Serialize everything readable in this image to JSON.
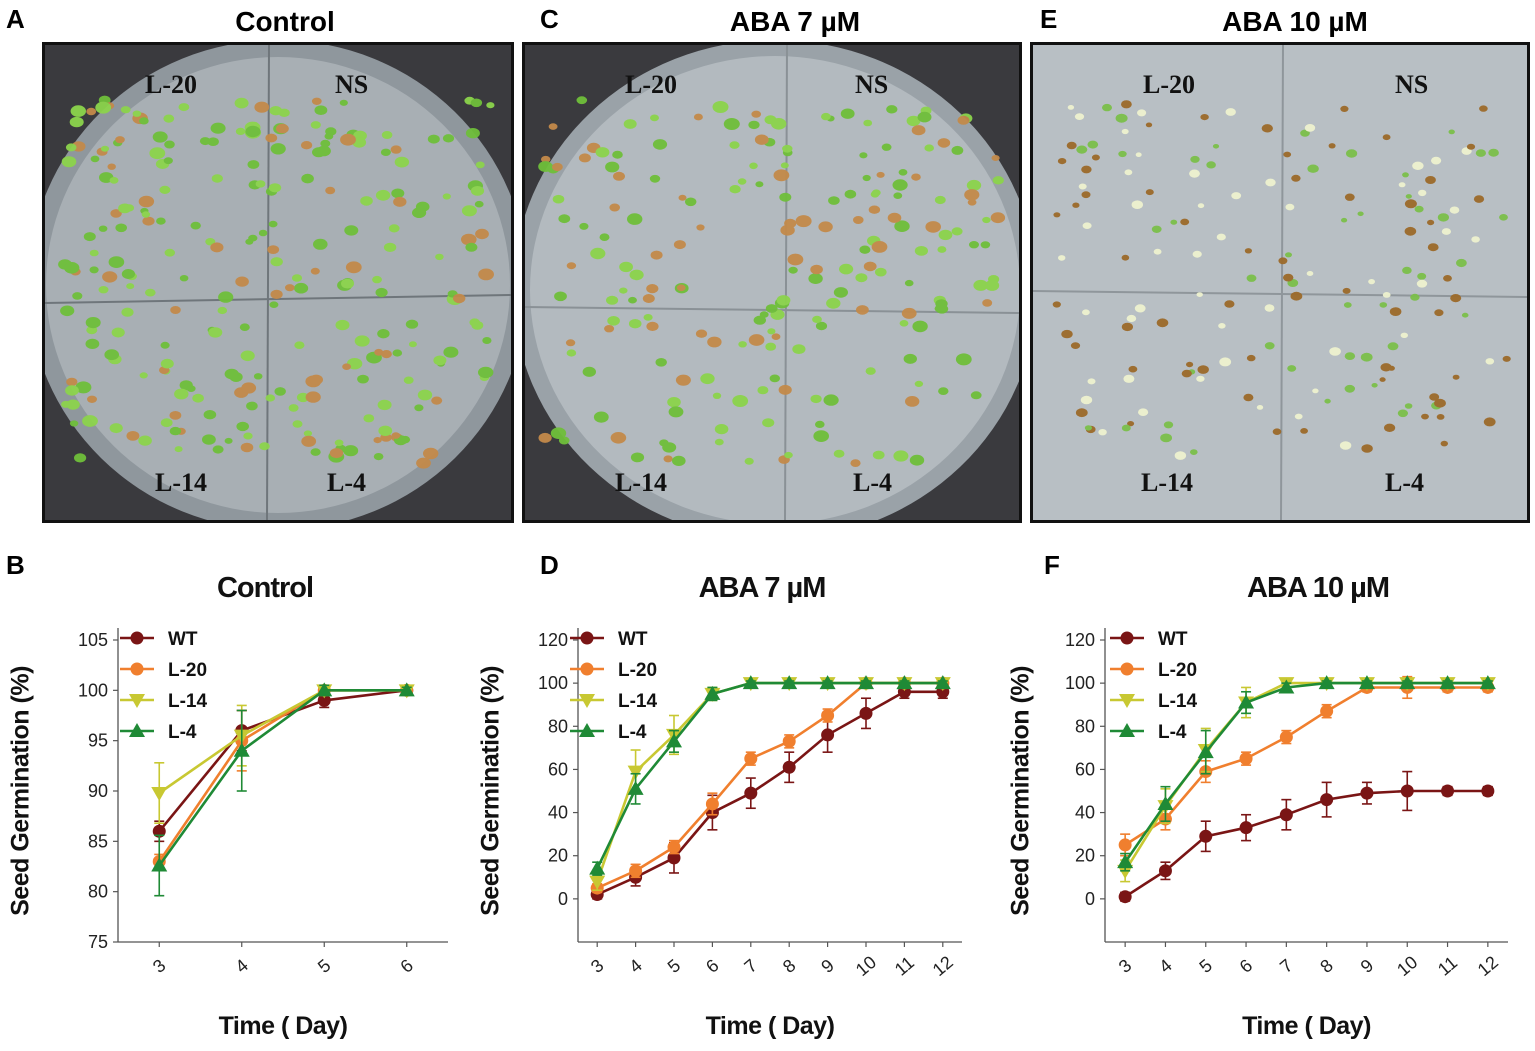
{
  "panels": {
    "A": {
      "letter": "A",
      "title": "Control"
    },
    "C": {
      "letter": "C",
      "title": "ABA  7 µM"
    },
    "E": {
      "letter": "E",
      "title": "ABA 10 µM"
    },
    "B": {
      "letter": "B"
    },
    "D": {
      "letter": "D"
    },
    "F": {
      "letter": "F"
    }
  },
  "plate_labels": {
    "top_left": "L-20",
    "top_right": "NS",
    "bottom_left": "L-14",
    "bottom_right": "L-4"
  },
  "series_colors": {
    "WT": "#7a1515",
    "L-20": "#f07f2e",
    "L-14": "#c8c832",
    "L-4": "#1f8a36"
  },
  "chart_data": [
    {
      "type": "line",
      "title": "Control",
      "xlabel": "Time ( Day)",
      "ylabel": "Seed Germination (%)",
      "x": [
        3,
        4,
        5,
        6
      ],
      "ylim": [
        75,
        105
      ],
      "yticks": [
        75,
        80,
        85,
        90,
        95,
        100,
        105
      ],
      "legend": "top-left",
      "series": [
        {
          "name": "WT",
          "marker": "circle",
          "values": [
            86,
            96,
            99,
            100
          ],
          "err": [
            1,
            2,
            0.7,
            0.3
          ]
        },
        {
          "name": "L-20",
          "marker": "circle",
          "values": [
            83,
            95,
            100,
            100
          ],
          "err": [
            0.7,
            3,
            0.5,
            0.3
          ]
        },
        {
          "name": "L-14",
          "marker": "triangle-down",
          "values": [
            89.8,
            95.5,
            100,
            100
          ],
          "err": [
            3,
            3,
            0.5,
            0.5
          ]
        },
        {
          "name": "L-4",
          "marker": "triangle-up",
          "values": [
            82.6,
            94,
            100,
            100
          ],
          "err": [
            3,
            4,
            0.5,
            0.3
          ]
        }
      ]
    },
    {
      "type": "line",
      "title": "ABA 7 µM",
      "xlabel": "Time ( Day)",
      "ylabel": "Seed Germination (%)",
      "x": [
        3,
        4,
        5,
        6,
        7,
        8,
        9,
        10,
        11,
        12
      ],
      "ylim": [
        -20,
        120
      ],
      "yticks": [
        0,
        20,
        40,
        60,
        80,
        100,
        120
      ],
      "legend": "top-left",
      "series": [
        {
          "name": "WT",
          "marker": "circle",
          "values": [
            2,
            10,
            19,
            40,
            49,
            61,
            76,
            86,
            96,
            96
          ],
          "err": [
            2,
            4,
            7,
            8,
            7,
            7,
            8,
            7,
            3,
            3
          ]
        },
        {
          "name": "L-20",
          "marker": "circle",
          "values": [
            5,
            13,
            24,
            44,
            65,
            73,
            85,
            100,
            100,
            100
          ],
          "err": [
            2,
            3,
            3,
            5,
            3,
            3,
            3,
            1,
            1,
            1
          ]
        },
        {
          "name": "L-14",
          "marker": "triangle-down",
          "values": [
            8,
            59,
            76,
            95,
            100,
            100,
            100,
            100,
            100,
            100
          ],
          "err": [
            4,
            10,
            9,
            3,
            1,
            1,
            1,
            1,
            1,
            1
          ]
        },
        {
          "name": "L-4",
          "marker": "triangle-up",
          "values": [
            14,
            51,
            73,
            95,
            100,
            100,
            100,
            100,
            100,
            100
          ],
          "err": [
            3,
            7,
            5,
            3,
            1,
            1,
            1,
            1,
            1,
            1
          ]
        }
      ]
    },
    {
      "type": "line",
      "title": "ABA 10 µM",
      "xlabel": "Time ( Day)",
      "ylabel": "Seed Germination (%)",
      "x": [
        3,
        4,
        5,
        6,
        7,
        8,
        9,
        10,
        11,
        12
      ],
      "ylim": [
        -20,
        120
      ],
      "yticks": [
        0,
        20,
        40,
        60,
        80,
        100,
        120
      ],
      "legend": "top-left",
      "series": [
        {
          "name": "WT",
          "marker": "circle",
          "values": [
            1,
            13,
            29,
            33,
            39,
            46,
            49,
            50,
            50,
            50
          ],
          "err": [
            2,
            4,
            7,
            6,
            7,
            8,
            5,
            9,
            2,
            2
          ]
        },
        {
          "name": "L-20",
          "marker": "circle",
          "values": [
            25,
            37,
            59,
            65,
            75,
            87,
            98,
            98,
            98,
            98
          ],
          "err": [
            5,
            5,
            5,
            3,
            3,
            3,
            2,
            5,
            2,
            2
          ]
        },
        {
          "name": "L-14",
          "marker": "triangle-down",
          "values": [
            13,
            43,
            69,
            91,
            100,
            100,
            100,
            100,
            100,
            100
          ],
          "err": [
            5,
            8,
            10,
            7,
            2,
            1,
            1,
            1,
            1,
            1
          ]
        },
        {
          "name": "L-4",
          "marker": "triangle-up",
          "values": [
            17,
            44,
            68,
            91,
            98,
            100,
            100,
            100,
            100,
            100
          ],
          "err": [
            4,
            8,
            10,
            5,
            2,
            1,
            1,
            1,
            1,
            1
          ]
        }
      ]
    }
  ]
}
